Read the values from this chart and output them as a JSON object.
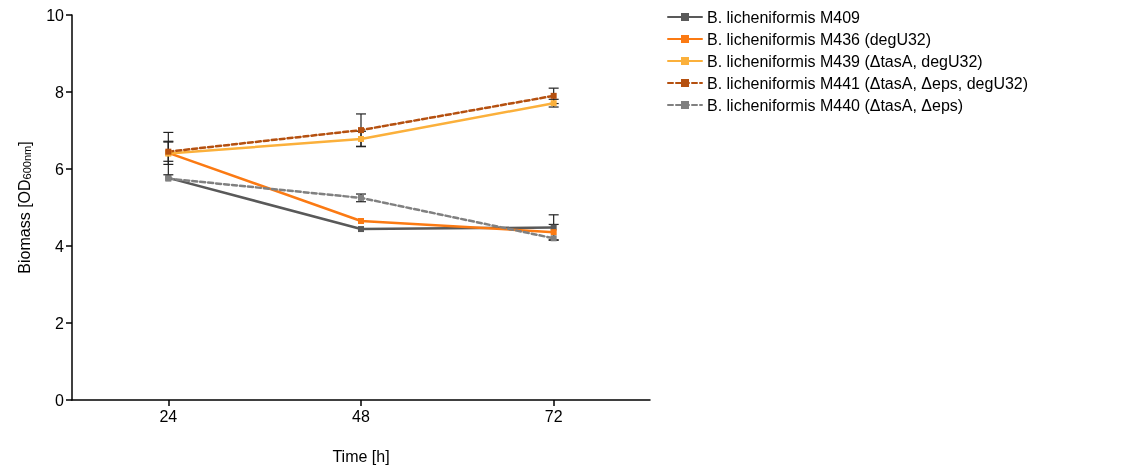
{
  "chart_data": {
    "type": "line",
    "xlabel": "Time [h]",
    "ylabel": "Biomass [OD$_{600nm}$]",
    "x": [
      24,
      48,
      72
    ],
    "xlim": [
      12,
      84
    ],
    "xticks": [
      24,
      48,
      72
    ],
    "ylim": [
      0,
      10
    ],
    "yticks": [
      0,
      2,
      4,
      6,
      8,
      10
    ],
    "grid": false,
    "legend": "right",
    "marker": "square",
    "series": [
      {
        "name": "B. licheniformis M409",
        "color": "#595959",
        "line_style": "solid",
        "values": [
          5.77,
          4.44,
          4.48
        ],
        "errors": [
          null,
          null,
          0.33
        ]
      },
      {
        "name": "B. licheniformis M436 (degU32)",
        "color": "#fb7a13",
        "line_style": "solid",
        "values": [
          6.42,
          4.65,
          4.36
        ],
        "errors": [
          0.3,
          null,
          0.2
        ]
      },
      {
        "name": "B. licheniformis M439 (ΔtasA, degU32)",
        "color": "#fbb03b",
        "line_style": "solid",
        "values": [
          6.4,
          6.78,
          7.71
        ],
        "errors": [
          0.55,
          0.2,
          0.1
        ]
      },
      {
        "name": "B. licheniformis M441 (ΔtasA, Δeps, degU32)",
        "color": "#b5500f",
        "line_style": "dashed",
        "values": [
          6.45,
          7.01,
          7.9
        ],
        "errors": [
          0.25,
          0.42,
          0.2
        ]
      },
      {
        "name": "B. licheniformis M440 (ΔtasA, Δeps)",
        "color": "#808080",
        "line_style": "dashed",
        "values": [
          5.75,
          5.25,
          4.2
        ],
        "errors": [
          null,
          0.1,
          null
        ]
      }
    ]
  }
}
